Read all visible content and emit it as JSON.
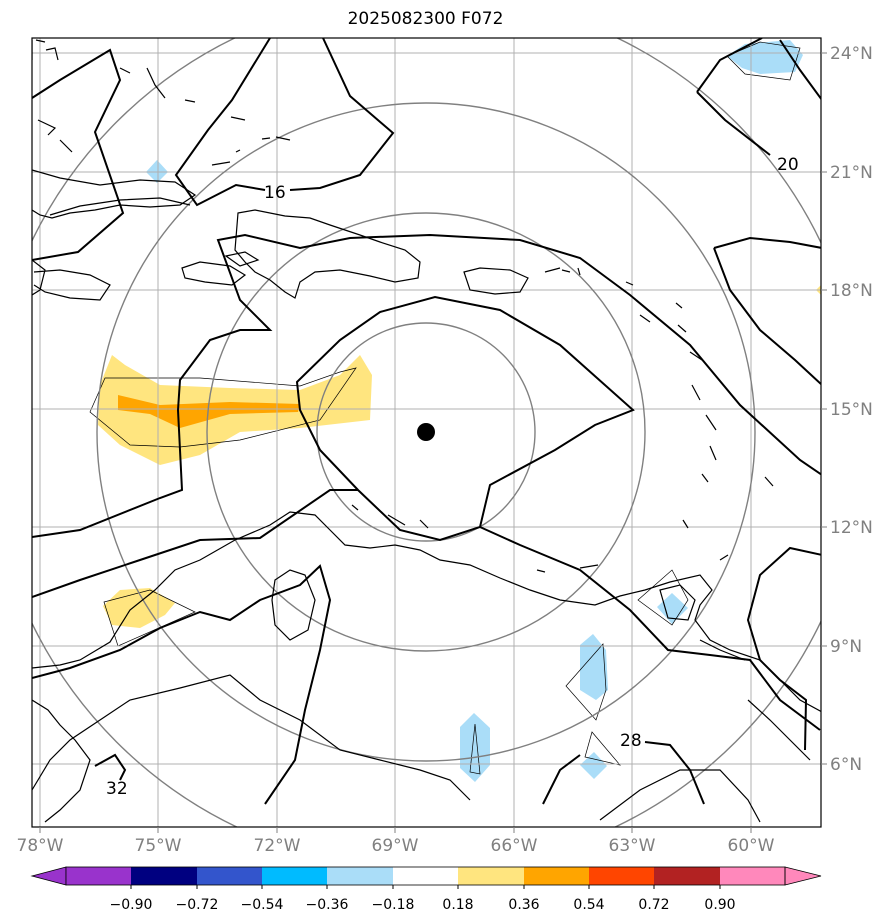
{
  "title": "2025082300 F072",
  "map": {
    "lon_range": [
      -78,
      -58.1
    ],
    "lat_range": [
      4.4,
      24.4
    ],
    "lon_ticks": [
      "78°W",
      "75°W",
      "72°W",
      "69°W",
      "66°W",
      "63°W",
      "60°W"
    ],
    "lat_ticks": [
      "24°N",
      "21°N",
      "18°N",
      "15°N",
      "12°N",
      "9°N",
      "6°N"
    ],
    "grid": true,
    "center_marker": {
      "lon": -68.2,
      "lat": 14.45,
      "color": "#000000"
    },
    "range_rings_color": "#808080",
    "contour_labels": [
      "16",
      "20",
      "28",
      "32"
    ]
  },
  "colorbar": {
    "ticks": [
      "−0.90",
      "−0.72",
      "−0.54",
      "−0.36",
      "−0.18",
      "0.18",
      "0.36",
      "0.54",
      "0.72",
      "0.90"
    ],
    "colors": [
      "#9933cc",
      "#000080",
      "#3355cc",
      "#00bbff",
      "#aaddf8",
      "#ffffff",
      "#ffe57f",
      "#ffa500",
      "#ff4500",
      "#b22222",
      "#ff88bb",
      "#ff88bb"
    ]
  },
  "fills": {
    "yellow": "#ffe57f",
    "orange": "#ffa500",
    "light_blue": "#aaddf8"
  }
}
